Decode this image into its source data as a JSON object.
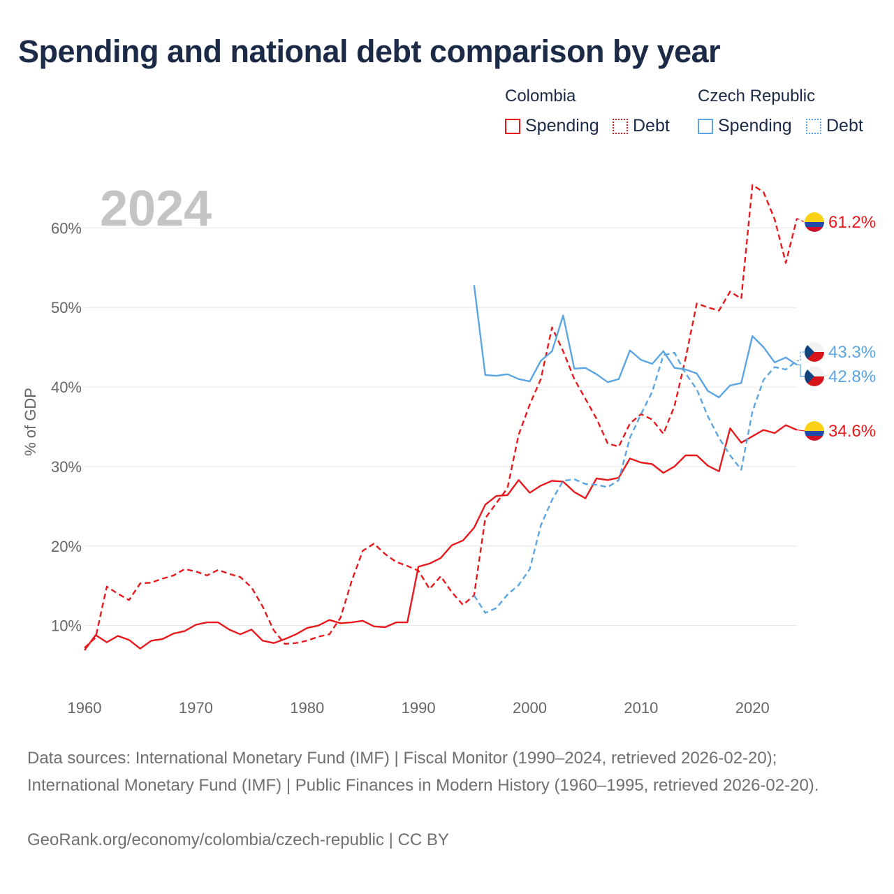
{
  "title": "Spending and national debt comparison by year",
  "legend": {
    "colombia": {
      "name": "Colombia",
      "spending": "Spending",
      "debt": "Debt"
    },
    "czech": {
      "name": "Czech Republic",
      "spending": "Spending",
      "debt": "Debt"
    }
  },
  "colors": {
    "colombia": "#e8191c",
    "czech": "#5ba5e2",
    "grid": "#e6e6e6",
    "axis_text": "#666666",
    "year": "#c4c4c4"
  },
  "footer": {
    "sources": "Data sources: International Monetary Fund (IMF) | Fiscal Monitor (1990–2024, retrieved 2026-02-20); International Monetary Fund (IMF) | Public Finances in Modern History (1960–1995, retrieved 2026-02-20).",
    "credit": "GeoRank.org/economy/colombia/czech-republic | CC BY"
  },
  "chart_data": {
    "type": "line",
    "year_label": "2024",
    "ylabel": "% of GDP",
    "ylim": [
      4,
      66
    ],
    "xlim": [
      1960,
      2024
    ],
    "y_ticks": [
      10,
      20,
      30,
      40,
      50,
      60
    ],
    "y_tick_labels": [
      "10%",
      "20%",
      "30%",
      "40%",
      "50%",
      "60%"
    ],
    "x_ticks": [
      1960,
      1970,
      1980,
      1990,
      2000,
      2010,
      2020
    ],
    "x_tick_labels": [
      "1960",
      "1970",
      "1980",
      "1990",
      "2000",
      "2010",
      "2020"
    ],
    "series": [
      {
        "name": "Colombia Spending",
        "country": "colombia",
        "style": "solid",
        "end_label": "34.6%",
        "end_value": 34.6,
        "start_year": 1960,
        "values": [
          6.9,
          8.8,
          7.9,
          8.7,
          8.2,
          7.1,
          8.1,
          8.3,
          9.0,
          9.3,
          10.1,
          10.4,
          10.4,
          9.5,
          8.9,
          9.5,
          8.1,
          7.8,
          8.3,
          8.9,
          9.7,
          10.0,
          10.7,
          10.3,
          10.4,
          10.6,
          9.9,
          9.8,
          10.4,
          10.4,
          17.4,
          17.8,
          18.5,
          20.1,
          20.7,
          22.3,
          25.2,
          26.3,
          26.4,
          28.3,
          26.7,
          27.6,
          28.2,
          28.1,
          26.8,
          26.0,
          28.5,
          28.3,
          28.6,
          31.0,
          30.5,
          30.3,
          29.2,
          30.0,
          31.4,
          31.4,
          30.1,
          29.4,
          34.8,
          33.0,
          33.8,
          34.6,
          34.2,
          35.2,
          34.6
        ]
      },
      {
        "name": "Colombia Debt",
        "country": "colombia",
        "style": "dashed",
        "end_label": "61.2%",
        "end_value": 61.2,
        "start_year": 1960,
        "values": [
          7.2,
          8.5,
          14.9,
          14.0,
          13.2,
          15.3,
          15.4,
          15.9,
          16.3,
          17.1,
          16.8,
          16.3,
          17.0,
          16.5,
          16.1,
          14.8,
          12.4,
          9.4,
          7.7,
          7.8,
          8.1,
          8.6,
          8.9,
          11.0,
          15.6,
          19.4,
          20.3,
          19.0,
          18.0,
          17.5,
          16.9,
          14.6,
          16.2,
          14.2,
          12.6,
          13.8,
          23.5,
          25.4,
          27.3,
          34.0,
          37.8,
          41.0,
          47.5,
          44.5,
          41.0,
          38.5,
          36.0,
          32.9,
          32.5,
          35.4,
          36.6,
          35.9,
          34.1,
          37.6,
          43.6,
          50.5,
          50.0,
          49.6,
          52.0,
          51.1,
          65.4,
          64.5,
          61.1,
          55.6,
          61.2
        ]
      },
      {
        "name": "Czech Republic Spending",
        "country": "czech",
        "style": "solid",
        "end_label": "42.8%",
        "end_value": 42.8,
        "start_year": 1995,
        "values": [
          52.8,
          41.5,
          41.4,
          41.6,
          41.0,
          40.7,
          43.3,
          44.5,
          49.0,
          42.3,
          42.4,
          41.6,
          40.6,
          41.0,
          44.6,
          43.4,
          42.9,
          44.5,
          42.4,
          42.2,
          41.7,
          39.5,
          38.7,
          40.2,
          40.5,
          46.4,
          45.0,
          43.1,
          43.7,
          42.8
        ]
      },
      {
        "name": "Czech Republic Debt",
        "country": "czech",
        "style": "dashed",
        "end_label": "43.3%",
        "end_value": 43.3,
        "start_year": 1995,
        "values": [
          13.8,
          11.6,
          12.2,
          13.9,
          15.1,
          17.1,
          22.6,
          25.8,
          28.2,
          28.4,
          27.8,
          27.7,
          27.4,
          28.3,
          33.6,
          36.6,
          39.4,
          44.0,
          44.3,
          41.7,
          39.7,
          36.3,
          33.6,
          31.4,
          29.6,
          36.9,
          40.9,
          42.5,
          42.2,
          43.3
        ]
      }
    ]
  }
}
